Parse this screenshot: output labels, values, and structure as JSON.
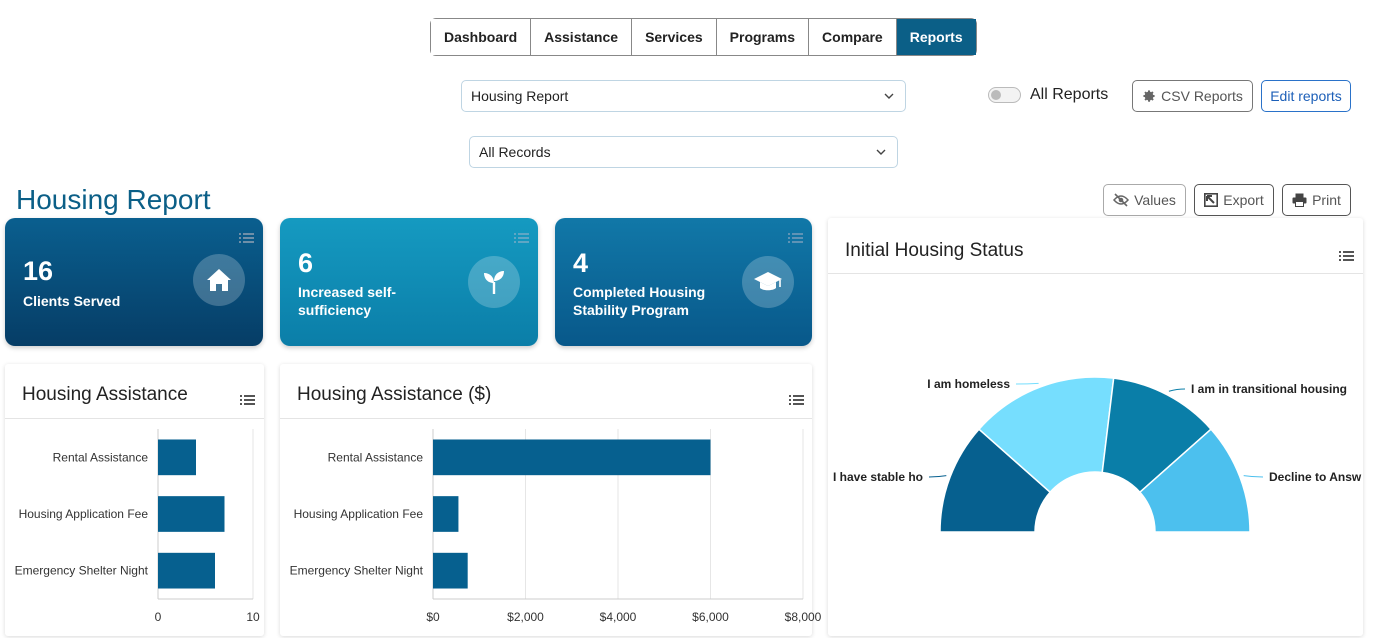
{
  "nav": {
    "tabs": [
      {
        "label": "Dashboard"
      },
      {
        "label": "Assistance"
      },
      {
        "label": "Services"
      },
      {
        "label": "Programs"
      },
      {
        "label": "Compare"
      },
      {
        "label": "Reports",
        "active": true
      }
    ]
  },
  "filters": {
    "report_select": "Housing Report",
    "records_select": "All Records"
  },
  "toolbar": {
    "all_reports_label": "All Reports",
    "all_reports_on": false,
    "csv_reports_label": "CSV Reports",
    "edit_reports_label": "Edit reports",
    "values_label": "Values",
    "export_label": "Export",
    "print_label": "Print"
  },
  "page": {
    "title": "Housing Report"
  },
  "kpis": [
    {
      "value": "16",
      "label_line1": "Clients Served",
      "label_line2": "",
      "icon": "home-icon"
    },
    {
      "value": "6",
      "label_line1": "Increased self-",
      "label_line2": "sufficiency",
      "icon": "sprout-icon"
    },
    {
      "value": "4",
      "label_line1": "Completed Housing",
      "label_line2": "Stability Program",
      "icon": "graduation-cap-icon"
    }
  ],
  "panels": {
    "housing_assistance": {
      "title": "Housing Assistance"
    },
    "housing_assistance_dollars": {
      "title": "Housing Assistance ($)"
    },
    "initial_housing_status": {
      "title": "Initial Housing Status"
    }
  },
  "colors": {
    "primary": "#0b5f87",
    "bar": "#06608f",
    "pie": [
      "#06608f",
      "#76defe",
      "#0a7ea8",
      "#4cc0ee"
    ]
  },
  "chart_data": [
    {
      "type": "bar",
      "orientation": "horizontal",
      "title": "Housing Assistance",
      "categories": [
        "Rental Assistance",
        "Housing Application Fee",
        "Emergency Shelter Night"
      ],
      "values": [
        4,
        7,
        6
      ],
      "xlim": [
        0,
        10
      ],
      "ticks": [
        "0",
        "10"
      ],
      "grid": true
    },
    {
      "type": "bar",
      "orientation": "horizontal",
      "title": "Housing Assistance ($)",
      "categories": [
        "Rental Assistance",
        "Housing Application Fee",
        "Emergency Shelter Night"
      ],
      "values": [
        6000,
        550,
        750
      ],
      "xlim": [
        0,
        8000
      ],
      "ticks": [
        "$0",
        "$2,000",
        "$4,000",
        "$6,000",
        "$8,000"
      ],
      "grid": true
    },
    {
      "type": "pie",
      "variant": "semi-donut",
      "title": "Initial Housing Status",
      "slices": [
        {
          "label": "I have stable ho",
          "value": 3
        },
        {
          "label": "I am homeless",
          "value": 4
        },
        {
          "label": "I am in transitional housing",
          "value": 3
        },
        {
          "label": "Decline to Answ",
          "value": 3
        }
      ]
    }
  ]
}
